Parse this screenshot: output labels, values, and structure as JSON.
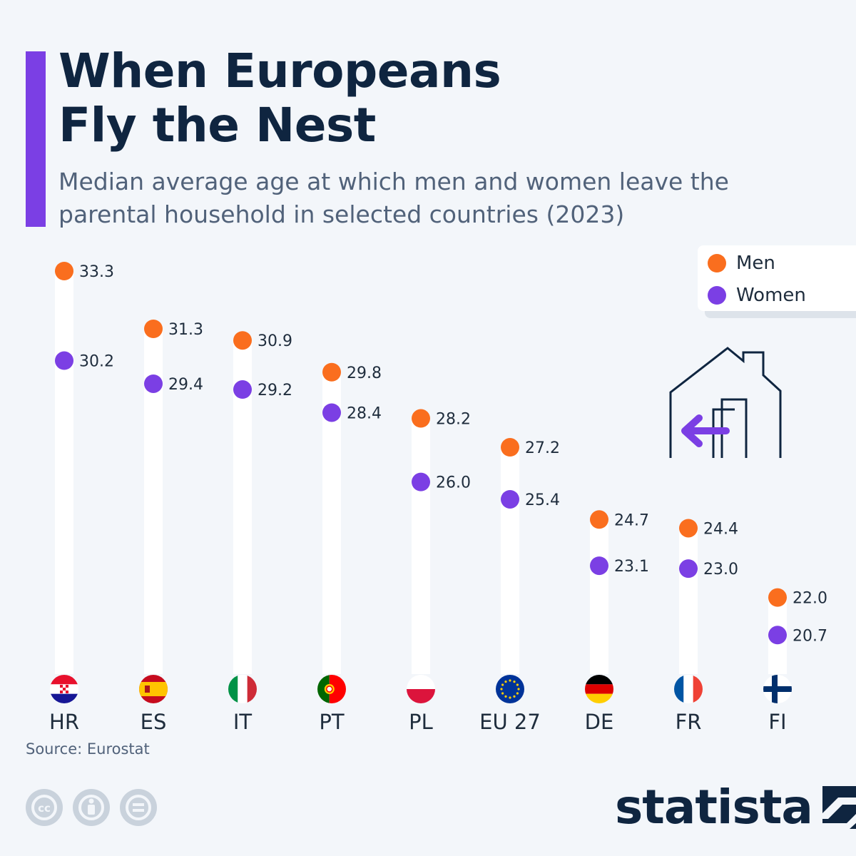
{
  "header": {
    "title_line1": "When Europeans",
    "title_line2": "Fly the Nest",
    "subtitle": "Median average age at which men and women leave the parental household in selected countries (2023)"
  },
  "legend": {
    "men_label": "Men",
    "women_label": "Women"
  },
  "colors": {
    "accent": "#7b3fe4",
    "men": "#fa6e1e",
    "women": "#7b3fe4",
    "title": "#0f2540",
    "text": "#1f2d3d",
    "track": "#ffffff"
  },
  "chart_data": {
    "type": "dot-range",
    "categories": [
      "HR",
      "ES",
      "IT",
      "PT",
      "PL",
      "EU 27",
      "DE",
      "FR",
      "FI"
    ],
    "flag_icons": [
      "croatia-flag-icon",
      "spain-flag-icon",
      "italy-flag-icon",
      "portugal-flag-icon",
      "poland-flag-icon",
      "eu-flag-icon",
      "germany-flag-icon",
      "france-flag-icon",
      "finland-flag-icon"
    ],
    "series": [
      {
        "name": "Men",
        "values": [
          33.3,
          31.3,
          30.9,
          29.8,
          28.2,
          27.2,
          24.7,
          24.4,
          22.0
        ]
      },
      {
        "name": "Women",
        "values": [
          30.2,
          29.4,
          29.2,
          28.4,
          26.0,
          25.4,
          23.1,
          23.0,
          20.7
        ]
      }
    ],
    "value_labels": {
      "men": [
        "33.3",
        "31.3",
        "30.9",
        "29.8",
        "28.2",
        "27.2",
        "24.7",
        "24.4",
        "22.0"
      ],
      "women": [
        "30.2",
        "29.4",
        "29.2",
        "28.4",
        "26.0",
        "25.4",
        "23.1",
        "23.0",
        "20.7"
      ]
    },
    "grid": false,
    "legend_position": "top-right"
  },
  "footer": {
    "source": "Source: Eurostat",
    "brand": "statista",
    "license_icons": [
      "creative-commons-icon",
      "attribution-icon",
      "no-derivatives-icon"
    ]
  }
}
